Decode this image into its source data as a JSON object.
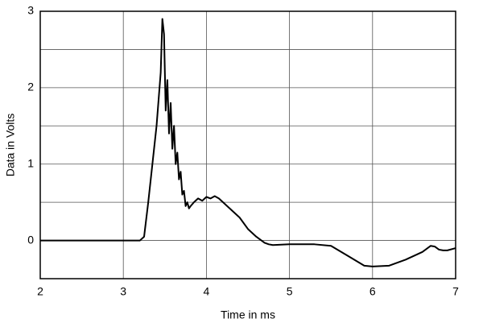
{
  "chart_data": {
    "type": "line",
    "xlabel": "Time in ms",
    "ylabel": "Data in Volts",
    "x": [
      2,
      3.2,
      3.25,
      3.3,
      3.35,
      3.4,
      3.45,
      3.47,
      3.49,
      3.51,
      3.53,
      3.55,
      3.57,
      3.59,
      3.61,
      3.63,
      3.65,
      3.67,
      3.69,
      3.71,
      3.73,
      3.75,
      3.77,
      3.79,
      3.81,
      3.85,
      3.9,
      3.95,
      4.0,
      4.05,
      4.1,
      4.15,
      4.2,
      4.3,
      4.4,
      4.5,
      4.6,
      4.7,
      4.75,
      4.8,
      5.0,
      5.3,
      5.5,
      5.7,
      5.9,
      6.0,
      6.2,
      6.4,
      6.5,
      6.6,
      6.7,
      6.75,
      6.8,
      6.85,
      6.9,
      7.0
    ],
    "series": [
      {
        "color": "#000000",
        "values": [
          0,
          0,
          0.05,
          0.5,
          1.0,
          1.5,
          2.2,
          2.9,
          2.7,
          1.7,
          2.1,
          1.4,
          1.8,
          1.2,
          1.5,
          1.0,
          1.15,
          0.8,
          0.9,
          0.6,
          0.65,
          0.45,
          0.5,
          0.42,
          0.45,
          0.5,
          0.55,
          0.52,
          0.57,
          0.55,
          0.58,
          0.55,
          0.5,
          0.4,
          0.3,
          0.15,
          0.05,
          -0.03,
          -0.05,
          -0.06,
          -0.05,
          -0.05,
          -0.07,
          -0.2,
          -0.33,
          -0.34,
          -0.33,
          -0.25,
          -0.2,
          -0.15,
          -0.07,
          -0.08,
          -0.12,
          -0.13,
          -0.13,
          -0.1
        ]
      }
    ],
    "xlim": [
      2,
      7
    ],
    "xticks": [
      2,
      3,
      4,
      5,
      6,
      7
    ],
    "ylim": [
      -0.5,
      3
    ],
    "yticks": [
      0,
      1,
      2,
      3
    ],
    "y_minor_gridlines": [
      0.5,
      1.5,
      2.5
    ],
    "grid": true
  }
}
